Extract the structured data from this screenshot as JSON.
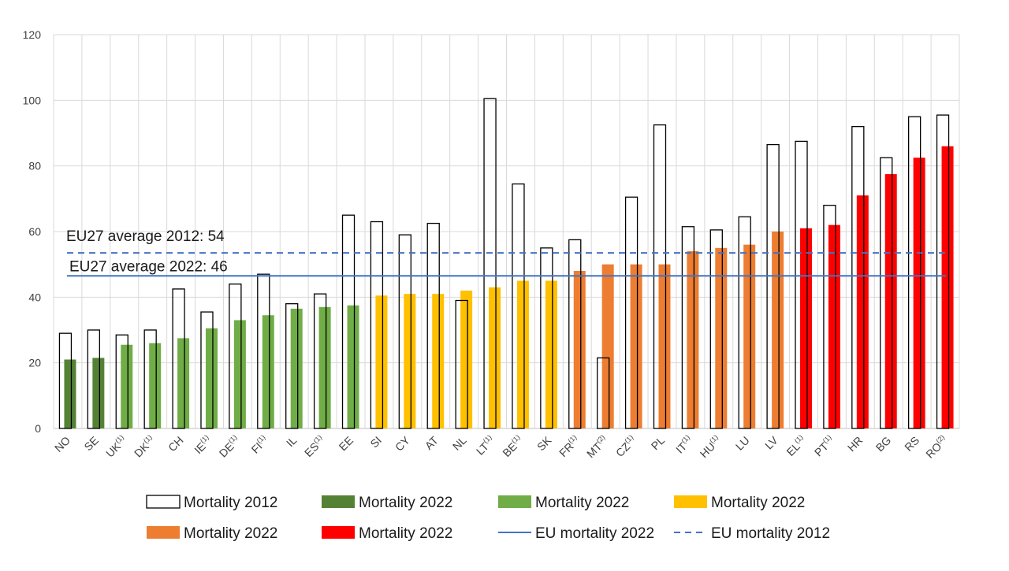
{
  "chart_data": {
    "type": "bar",
    "ylim": [
      0,
      120
    ],
    "y_ticks": [
      0,
      20,
      40,
      60,
      80,
      100,
      120
    ],
    "grid": true,
    "categories": [
      {
        "label": "NO",
        "sup": ""
      },
      {
        "label": "SE",
        "sup": ""
      },
      {
        "label": "UK",
        "sup": "(1)"
      },
      {
        "label": "DK",
        "sup": "(1)"
      },
      {
        "label": "CH",
        "sup": ""
      },
      {
        "label": "IE",
        "sup": "(1)"
      },
      {
        "label": "DE",
        "sup": "(1)"
      },
      {
        "label": "FI",
        "sup": "(1)"
      },
      {
        "label": "IL",
        "sup": ""
      },
      {
        "label": "ES",
        "sup": "(1)"
      },
      {
        "label": "EE",
        "sup": ""
      },
      {
        "label": "SI",
        "sup": ""
      },
      {
        "label": "CY",
        "sup": ""
      },
      {
        "label": "AT",
        "sup": ""
      },
      {
        "label": "NL",
        "sup": ""
      },
      {
        "label": "LT",
        "sup": "(1)"
      },
      {
        "label": "BE",
        "sup": "(1)"
      },
      {
        "label": "SK",
        "sup": ""
      },
      {
        "label": "FR",
        "sup": "(1)"
      },
      {
        "label": "MT",
        "sup": "(2)"
      },
      {
        "label": "CZ",
        "sup": "(1)"
      },
      {
        "label": "PL",
        "sup": ""
      },
      {
        "label": "IT",
        "sup": "(1)"
      },
      {
        "label": "HU",
        "sup": "(1)"
      },
      {
        "label": "LU",
        "sup": ""
      },
      {
        "label": "LV",
        "sup": ""
      },
      {
        "label": "EL",
        "sup": "(1)"
      },
      {
        "label": "PT",
        "sup": "(1)"
      },
      {
        "label": "HR",
        "sup": ""
      },
      {
        "label": "BG",
        "sup": ""
      },
      {
        "label": "RS",
        "sup": ""
      },
      {
        "label": "RO",
        "sup": "(2)"
      }
    ],
    "series": [
      {
        "name": "Mortality 2012",
        "style": "outline",
        "values": [
          29,
          30,
          28.5,
          30,
          42.5,
          35.5,
          44,
          47,
          38,
          41,
          65,
          63,
          59,
          62.5,
          39,
          100.5,
          74.5,
          55,
          57.5,
          21.5,
          70.5,
          92.5,
          61.5,
          60.5,
          64.5,
          86.5,
          87.5,
          68,
          92,
          82.5,
          95,
          95.5
        ]
      },
      {
        "name": "Mortality 2022",
        "style": "fill",
        "values": [
          21,
          21.5,
          25.5,
          26,
          27.5,
          30.5,
          33,
          34.5,
          36.5,
          37,
          37.5,
          40.5,
          41,
          41,
          42,
          43,
          45,
          45,
          48,
          50,
          50,
          50,
          54,
          55,
          56,
          60,
          61,
          62,
          71,
          77.5,
          82.5,
          86
        ],
        "color_groups": [
          "dark-green",
          "dark-green",
          "green",
          "green",
          "green",
          "green",
          "green",
          "green",
          "green",
          "green",
          "green",
          "yellow",
          "yellow",
          "yellow",
          "yellow",
          "yellow",
          "yellow",
          "yellow",
          "orange",
          "orange",
          "orange",
          "orange",
          "orange",
          "orange",
          "orange",
          "orange",
          "red",
          "red",
          "red",
          "red",
          "red",
          "red"
        ]
      }
    ],
    "reference_lines": [
      {
        "name": "EU mortality 2022",
        "value": 46.5,
        "style": "solid",
        "label": "EU27 average 2022: 46"
      },
      {
        "name": "EU mortality 2012",
        "value": 53.5,
        "style": "dashed",
        "label": "EU27 average 2012: 54"
      }
    ],
    "legend": {
      "placement": "bottom",
      "rows": [
        [
          {
            "type": "outline-box",
            "label": "Mortality 2012"
          },
          {
            "type": "box",
            "color_group": "dark-green",
            "label": "Mortality 2022"
          },
          {
            "type": "box",
            "color_group": "green",
            "label": "Mortality 2022"
          },
          {
            "type": "box",
            "color_group": "yellow",
            "label": "Mortality 2022"
          }
        ],
        [
          {
            "type": "box",
            "color_group": "orange",
            "label": "Mortality 2022"
          },
          {
            "type": "box",
            "color_group": "red",
            "label": "Mortality 2022"
          },
          {
            "type": "solid-line",
            "label": "EU mortality 2022"
          },
          {
            "type": "dashed-line",
            "label": "EU mortality 2012"
          }
        ]
      ]
    }
  },
  "colors": {
    "dark-green": "#548235",
    "green": "#70ad47",
    "yellow": "#ffc000",
    "orange": "#ed7d31",
    "red": "#ff0000",
    "line": "#4472c4",
    "grid": "#d9d9d9",
    "axis": "#bfbfbf",
    "outline": "#000000"
  }
}
